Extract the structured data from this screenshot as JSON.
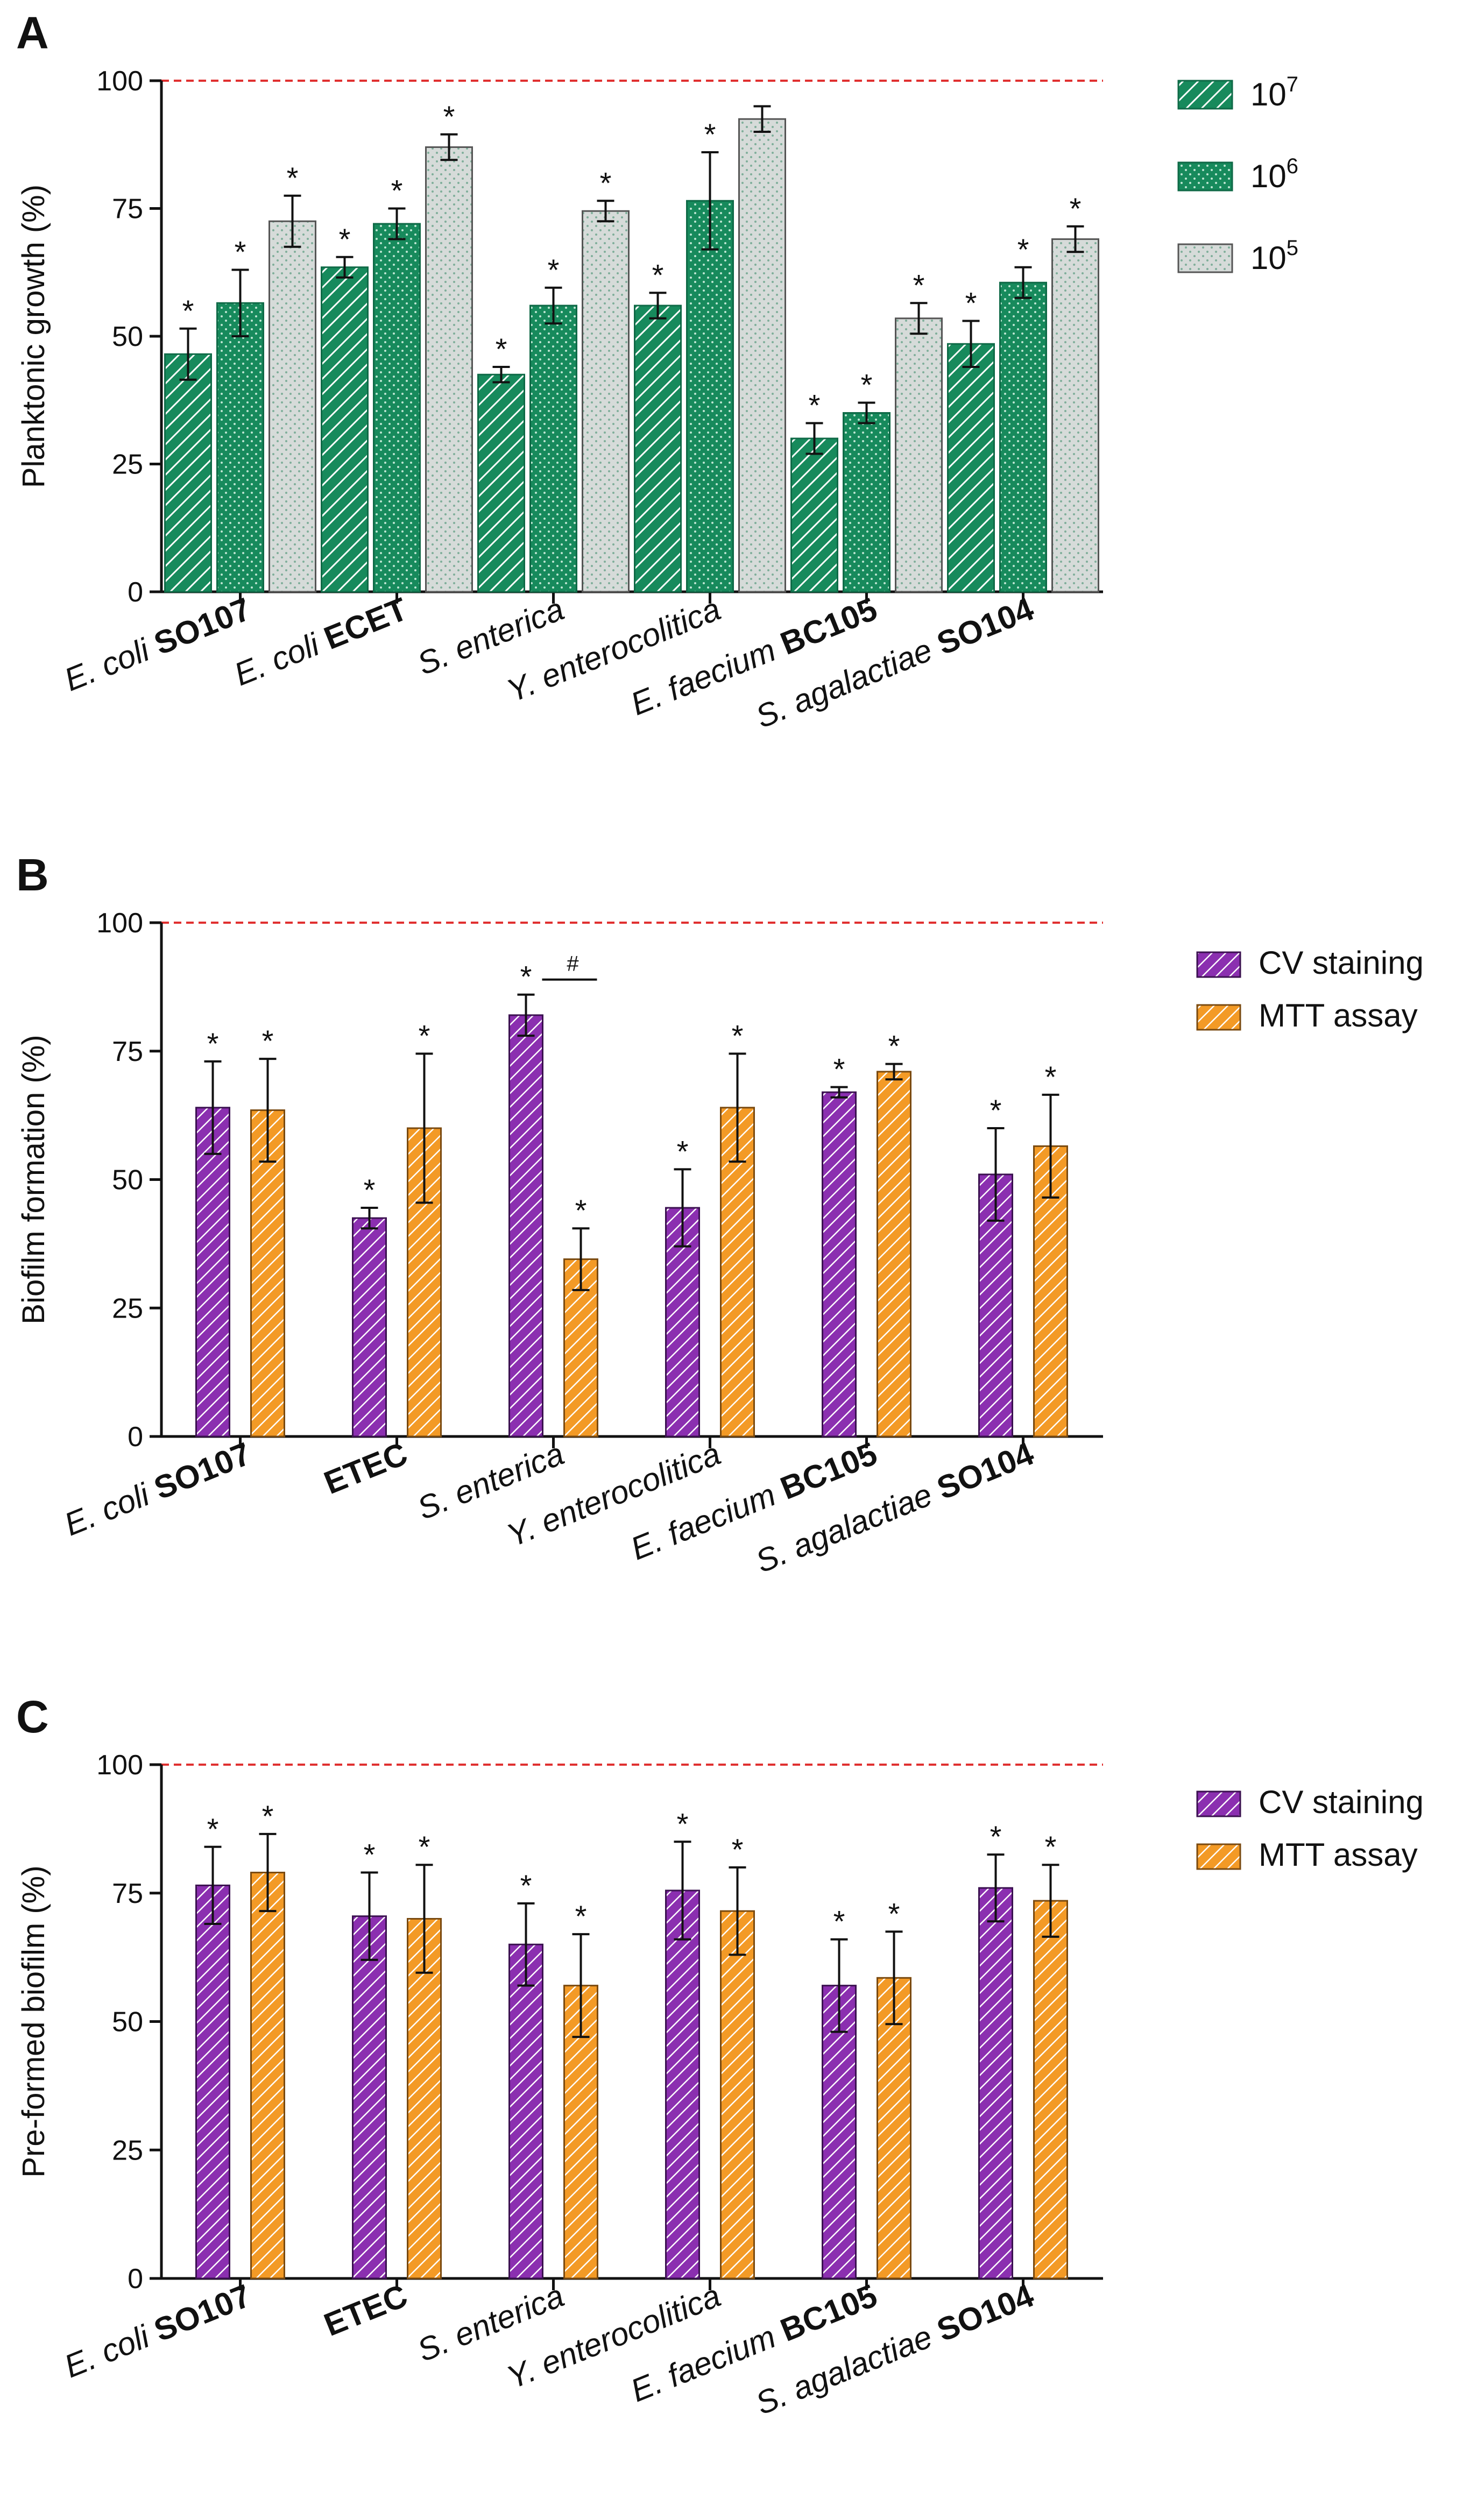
{
  "figure": {
    "panels": [
      "A",
      "B",
      "C"
    ],
    "sig_marker": "*",
    "hash_marker": "#"
  },
  "colors": {
    "green": "#178a5c",
    "green_dark": "#0f6a47",
    "grey": "#d6dbd9",
    "purple": "#8b2fb0",
    "orange": "#f39a26",
    "reference_line": "#e03030",
    "axis": "#111111"
  },
  "chart_data": [
    {
      "panel": "A",
      "type": "bar",
      "ylabel": "Planktonic growth (%)",
      "ylim": [
        0,
        100
      ],
      "yticks": [
        0,
        25,
        50,
        75,
        100
      ],
      "reference_line": 100,
      "categories": [
        {
          "italic": "E. coli",
          "bold": "SO107"
        },
        {
          "italic": "E. coli",
          "bold": "ECET"
        },
        {
          "italic": "S. enterica",
          "bold": ""
        },
        {
          "italic": "Y. enterocolitica",
          "bold": ""
        },
        {
          "italic": "E. faecium",
          "bold": "BC105"
        },
        {
          "italic": "S. agalactiae",
          "bold": "SO104"
        }
      ],
      "series": [
        {
          "name": "10",
          "sup": "7",
          "style": "green-hatch",
          "values": [
            46.5,
            63.5,
            42.5,
            56,
            30,
            48.5
          ],
          "errors": [
            5,
            2,
            1.5,
            2.5,
            3,
            4.5
          ],
          "sig": [
            true,
            true,
            true,
            true,
            true,
            true
          ]
        },
        {
          "name": "10",
          "sup": "6",
          "style": "green-dots",
          "values": [
            56.5,
            72,
            56,
            76.5,
            35,
            60.5
          ],
          "errors": [
            6.5,
            3,
            3.5,
            9.5,
            2,
            3
          ],
          "sig": [
            true,
            true,
            true,
            true,
            true,
            true
          ]
        },
        {
          "name": "10",
          "sup": "5",
          "style": "grey-dots",
          "values": [
            72.5,
            87,
            74.5,
            92.5,
            53.5,
            69
          ],
          "errors": [
            5,
            2.5,
            2,
            2.5,
            3,
            2.5
          ],
          "sig": [
            true,
            true,
            true,
            false,
            true,
            true
          ]
        }
      ]
    },
    {
      "panel": "B",
      "type": "bar",
      "ylabel": "Biofilm formation (%)",
      "ylim": [
        0,
        100
      ],
      "yticks": [
        0,
        25,
        50,
        75,
        100
      ],
      "reference_line": 100,
      "categories": [
        {
          "italic": "E. coli",
          "bold": "SO107"
        },
        {
          "italic": "",
          "bold": "ETEC"
        },
        {
          "italic": "S. enterica",
          "bold": ""
        },
        {
          "italic": "Y. enterocolitica",
          "bold": ""
        },
        {
          "italic": "E. faecium",
          "bold": "BC105"
        },
        {
          "italic": "S. agalactiae",
          "bold": "SO104"
        }
      ],
      "series": [
        {
          "name": "CV staining",
          "style": "purple-hatch",
          "values": [
            64,
            42.5,
            82,
            44.5,
            67,
            51
          ],
          "errors": [
            9,
            2,
            4,
            7.5,
            1,
            9
          ],
          "sig": [
            true,
            true,
            true,
            true,
            true,
            true
          ]
        },
        {
          "name": "MTT assay",
          "style": "orange-hatch",
          "values": [
            63.5,
            60,
            34.5,
            64,
            71,
            56.5
          ],
          "errors": [
            10,
            14.5,
            6,
            10.5,
            1.5,
            10
          ],
          "sig": [
            true,
            true,
            true,
            true,
            true,
            true
          ]
        }
      ],
      "hash_bracket_category": 2
    },
    {
      "panel": "C",
      "type": "bar",
      "ylabel": "Pre-formed biofilm (%)",
      "ylim": [
        0,
        100
      ],
      "yticks": [
        0,
        25,
        50,
        75,
        100
      ],
      "reference_line": 100,
      "categories": [
        {
          "italic": "E. coli",
          "bold": "SO107"
        },
        {
          "italic": "",
          "bold": "ETEC"
        },
        {
          "italic": "S. enterica",
          "bold": ""
        },
        {
          "italic": "Y. enterocolitica",
          "bold": ""
        },
        {
          "italic": "E. faecium",
          "bold": "BC105"
        },
        {
          "italic": "S. agalactiae",
          "bold": "SO104"
        }
      ],
      "series": [
        {
          "name": "CV staining",
          "style": "purple-hatch",
          "values": [
            76.5,
            70.5,
            65,
            75.5,
            57,
            76
          ],
          "errors": [
            7.5,
            8.5,
            8,
            9.5,
            9,
            6.5
          ],
          "sig": [
            true,
            true,
            true,
            true,
            true,
            true
          ]
        },
        {
          "name": "MTT assay",
          "style": "orange-hatch",
          "values": [
            79,
            70,
            57,
            71.5,
            58.5,
            73.5
          ],
          "errors": [
            7.5,
            10.5,
            10,
            8.5,
            9,
            7
          ],
          "sig": [
            true,
            true,
            true,
            true,
            true,
            true
          ]
        }
      ]
    }
  ]
}
